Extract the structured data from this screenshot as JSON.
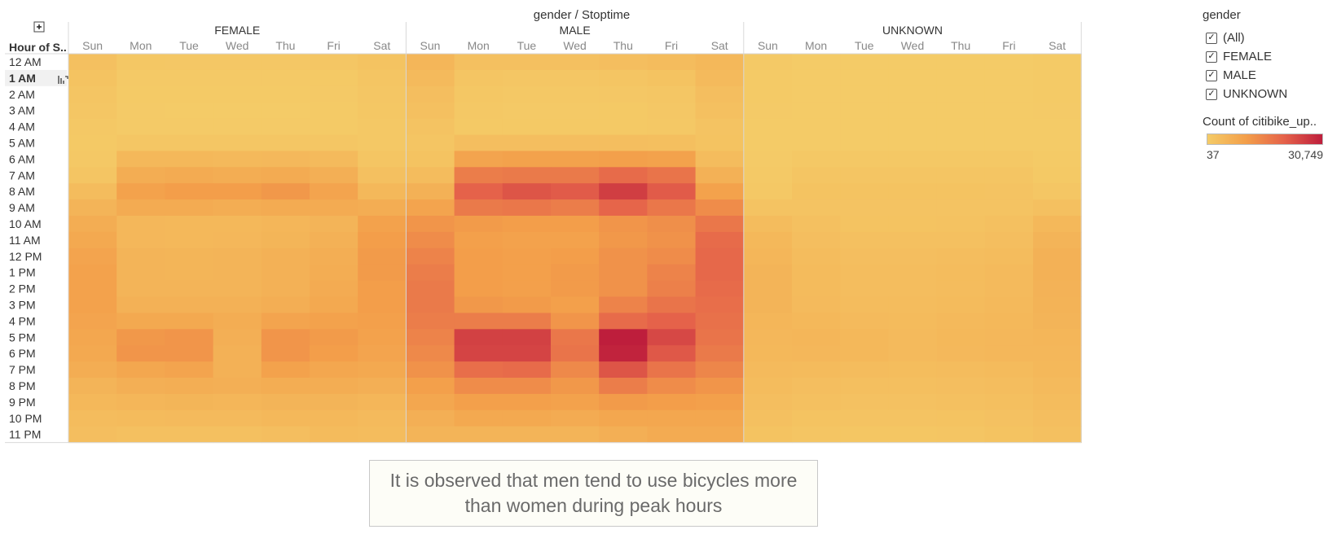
{
  "header": {
    "title": "gender / Stoptime",
    "row_header": "Hour of S.."
  },
  "legend": {
    "filter_title": "gender",
    "filter_items": [
      {
        "label": "(All)",
        "checked": true
      },
      {
        "label": "FEMALE",
        "checked": true
      },
      {
        "label": "MALE",
        "checked": true
      },
      {
        "label": "UNKNOWN",
        "checked": true
      }
    ],
    "color_title": "Count of citibike_up..",
    "color_min": "37",
    "color_max": "30,749",
    "colors": [
      "#f4cb67",
      "#f39f4a",
      "#e5624a",
      "#be1e3c"
    ]
  },
  "caption": "It is observed that men tend to use bicycles more than women during peak hours",
  "chart_data": {
    "type": "heatmap",
    "title": "gender / Stoptime",
    "row_label": "Hour of S..",
    "groups": [
      "FEMALE",
      "MALE",
      "UNKNOWN"
    ],
    "columns": [
      "Sun",
      "Mon",
      "Tue",
      "Wed",
      "Thu",
      "Fri",
      "Sat"
    ],
    "rows": [
      "12 AM",
      "1 AM",
      "2 AM",
      "3 AM",
      "4 AM",
      "5 AM",
      "6 AM",
      "7 AM",
      "8 AM",
      "9 AM",
      "10 AM",
      "11 AM",
      "12 PM",
      "1 PM",
      "2 PM",
      "3 PM",
      "4 PM",
      "5 PM",
      "6 PM",
      "7 PM",
      "8 PM",
      "9 PM",
      "10 PM",
      "11 PM"
    ],
    "value_range": [
      37,
      30749
    ],
    "values": {
      "FEMALE": [
        [
          2500,
          1000,
          900,
          900,
          900,
          1200,
          2000
        ],
        [
          2000,
          500,
          400,
          400,
          400,
          600,
          1500
        ],
        [
          1500,
          300,
          250,
          250,
          250,
          400,
          1200
        ],
        [
          1200,
          200,
          150,
          150,
          150,
          300,
          1000
        ],
        [
          800,
          200,
          200,
          200,
          200,
          300,
          700
        ],
        [
          600,
          1200,
          1200,
          1200,
          1200,
          1100,
          700
        ],
        [
          800,
          4500,
          4500,
          4200,
          4400,
          4000,
          1500
        ],
        [
          1500,
          7000,
          7500,
          7000,
          7500,
          6500,
          2500
        ],
        [
          3500,
          9500,
          10500,
          10500,
          11500,
          9000,
          4500
        ],
        [
          5500,
          7500,
          7500,
          7000,
          7500,
          7500,
          7000
        ],
        [
          7000,
          4800,
          4500,
          4500,
          5000,
          5500,
          9500
        ],
        [
          8000,
          4800,
          4500,
          4800,
          5200,
          6000,
          10500
        ],
        [
          9000,
          5500,
          5200,
          5500,
          6200,
          6800,
          11000
        ],
        [
          9500,
          5500,
          5200,
          5500,
          6200,
          7000,
          11000
        ],
        [
          9500,
          5500,
          5500,
          5500,
          6200,
          7500,
          10500
        ],
        [
          9500,
          6000,
          6000,
          6000,
          6800,
          8000,
          10500
        ],
        [
          9000,
          8000,
          8000,
          7000,
          9000,
          9500,
          10000
        ],
        [
          8500,
          11500,
          12000,
          6500,
          12000,
          11000,
          9500
        ],
        [
          8000,
          12000,
          12000,
          6000,
          12000,
          10500,
          9000
        ],
        [
          7000,
          8500,
          9000,
          6000,
          9500,
          8500,
          8000
        ],
        [
          5500,
          6500,
          6800,
          6500,
          7000,
          7000,
          6500
        ],
        [
          4500,
          5000,
          5200,
          5000,
          5500,
          5500,
          5000
        ],
        [
          3500,
          3800,
          4000,
          4000,
          4500,
          4500,
          4000
        ],
        [
          3000,
          2500,
          2500,
          2600,
          3000,
          3800,
          3500
        ]
      ],
      "MALE": [
        [
          5000,
          2500,
          2500,
          2500,
          3000,
          3500,
          4500
        ],
        [
          4000,
          1500,
          1200,
          1200,
          1500,
          2000,
          4000
        ],
        [
          3000,
          1000,
          800,
          800,
          900,
          1200,
          3000
        ],
        [
          2500,
          700,
          500,
          500,
          600,
          900,
          2500
        ],
        [
          1800,
          600,
          600,
          600,
          600,
          800,
          1800
        ],
        [
          1500,
          3000,
          3000,
          3000,
          3000,
          2800,
          2000
        ],
        [
          2000,
          9000,
          9500,
          9500,
          10000,
          9500,
          3500
        ],
        [
          3500,
          16000,
          16500,
          16500,
          19000,
          17500,
          6000
        ],
        [
          6000,
          20500,
          22500,
          21500,
          26000,
          21500,
          9500
        ],
        [
          9000,
          16500,
          17000,
          16000,
          20000,
          17000,
          13500
        ],
        [
          12000,
          11000,
          10500,
          10500,
          12000,
          13000,
          17000
        ],
        [
          13500,
          10000,
          9500,
          9500,
          11500,
          12500,
          19000
        ],
        [
          15000,
          10500,
          10000,
          10500,
          12500,
          13500,
          19500
        ],
        [
          16000,
          10500,
          10000,
          11000,
          12500,
          15000,
          19500
        ],
        [
          16500,
          10500,
          10000,
          11000,
          12500,
          15500,
          19000
        ],
        [
          16500,
          11500,
          11000,
          10000,
          15000,
          17500,
          18500
        ],
        [
          16000,
          16000,
          16000,
          12000,
          19000,
          20500,
          18000
        ],
        [
          15000,
          25500,
          25500,
          17000,
          30749,
          24500,
          17500
        ],
        [
          14000,
          25000,
          25000,
          17500,
          30000,
          22000,
          16500
        ],
        [
          12500,
          18500,
          19000,
          14000,
          22500,
          17500,
          14500
        ],
        [
          10000,
          13500,
          13500,
          11500,
          16000,
          13500,
          12000
        ],
        [
          8500,
          10000,
          10000,
          9500,
          11000,
          10500,
          10000
        ],
        [
          6500,
          8000,
          8000,
          7500,
          8500,
          8500,
          8500
        ],
        [
          5500,
          5500,
          5500,
          5500,
          6500,
          7500,
          7500
        ]
      ],
      "UNKNOWN": [
        [
          400,
          100,
          100,
          100,
          100,
          150,
          350
        ],
        [
          300,
          60,
          50,
          50,
          50,
          80,
          300
        ],
        [
          250,
          40,
          37,
          37,
          40,
          60,
          250
        ],
        [
          200,
          40,
          37,
          37,
          37,
          50,
          200
        ],
        [
          150,
          40,
          40,
          40,
          40,
          50,
          150
        ],
        [
          100,
          150,
          150,
          150,
          150,
          150,
          150
        ],
        [
          200,
          800,
          800,
          800,
          800,
          700,
          300
        ],
        [
          400,
          1500,
          1500,
          1500,
          1500,
          1400,
          600
        ],
        [
          800,
          2000,
          2000,
          2000,
          2000,
          1900,
          1200
        ],
        [
          1800,
          1800,
          1800,
          1800,
          1800,
          1800,
          2500
        ],
        [
          3500,
          2500,
          2000,
          2000,
          2200,
          2500,
          4500
        ],
        [
          4500,
          3000,
          2500,
          2500,
          2600,
          3000,
          5500
        ],
        [
          5000,
          3500,
          3000,
          3000,
          3200,
          3500,
          6000
        ],
        [
          5500,
          3800,
          3200,
          3200,
          3500,
          4000,
          6000
        ],
        [
          5500,
          3800,
          3300,
          3300,
          3600,
          4000,
          5800
        ],
        [
          5500,
          4000,
          3500,
          3500,
          3800,
          4200,
          5600
        ],
        [
          5000,
          4500,
          4000,
          3800,
          4200,
          4500,
          5400
        ],
        [
          4800,
          5000,
          4500,
          4000,
          4500,
          4800,
          5000
        ],
        [
          4500,
          4800,
          4500,
          4000,
          4400,
          4600,
          4800
        ],
        [
          4000,
          3800,
          3500,
          3400,
          3600,
          3800,
          4500
        ],
        [
          3500,
          3000,
          2800,
          2800,
          3000,
          3200,
          4000
        ],
        [
          3000,
          2500,
          2300,
          2300,
          2500,
          2800,
          3500
        ],
        [
          2500,
          2000,
          1800,
          1800,
          2000,
          2300,
          3000
        ],
        [
          2000,
          1400,
          1300,
          1300,
          1500,
          2000,
          2500
        ]
      ]
    }
  }
}
